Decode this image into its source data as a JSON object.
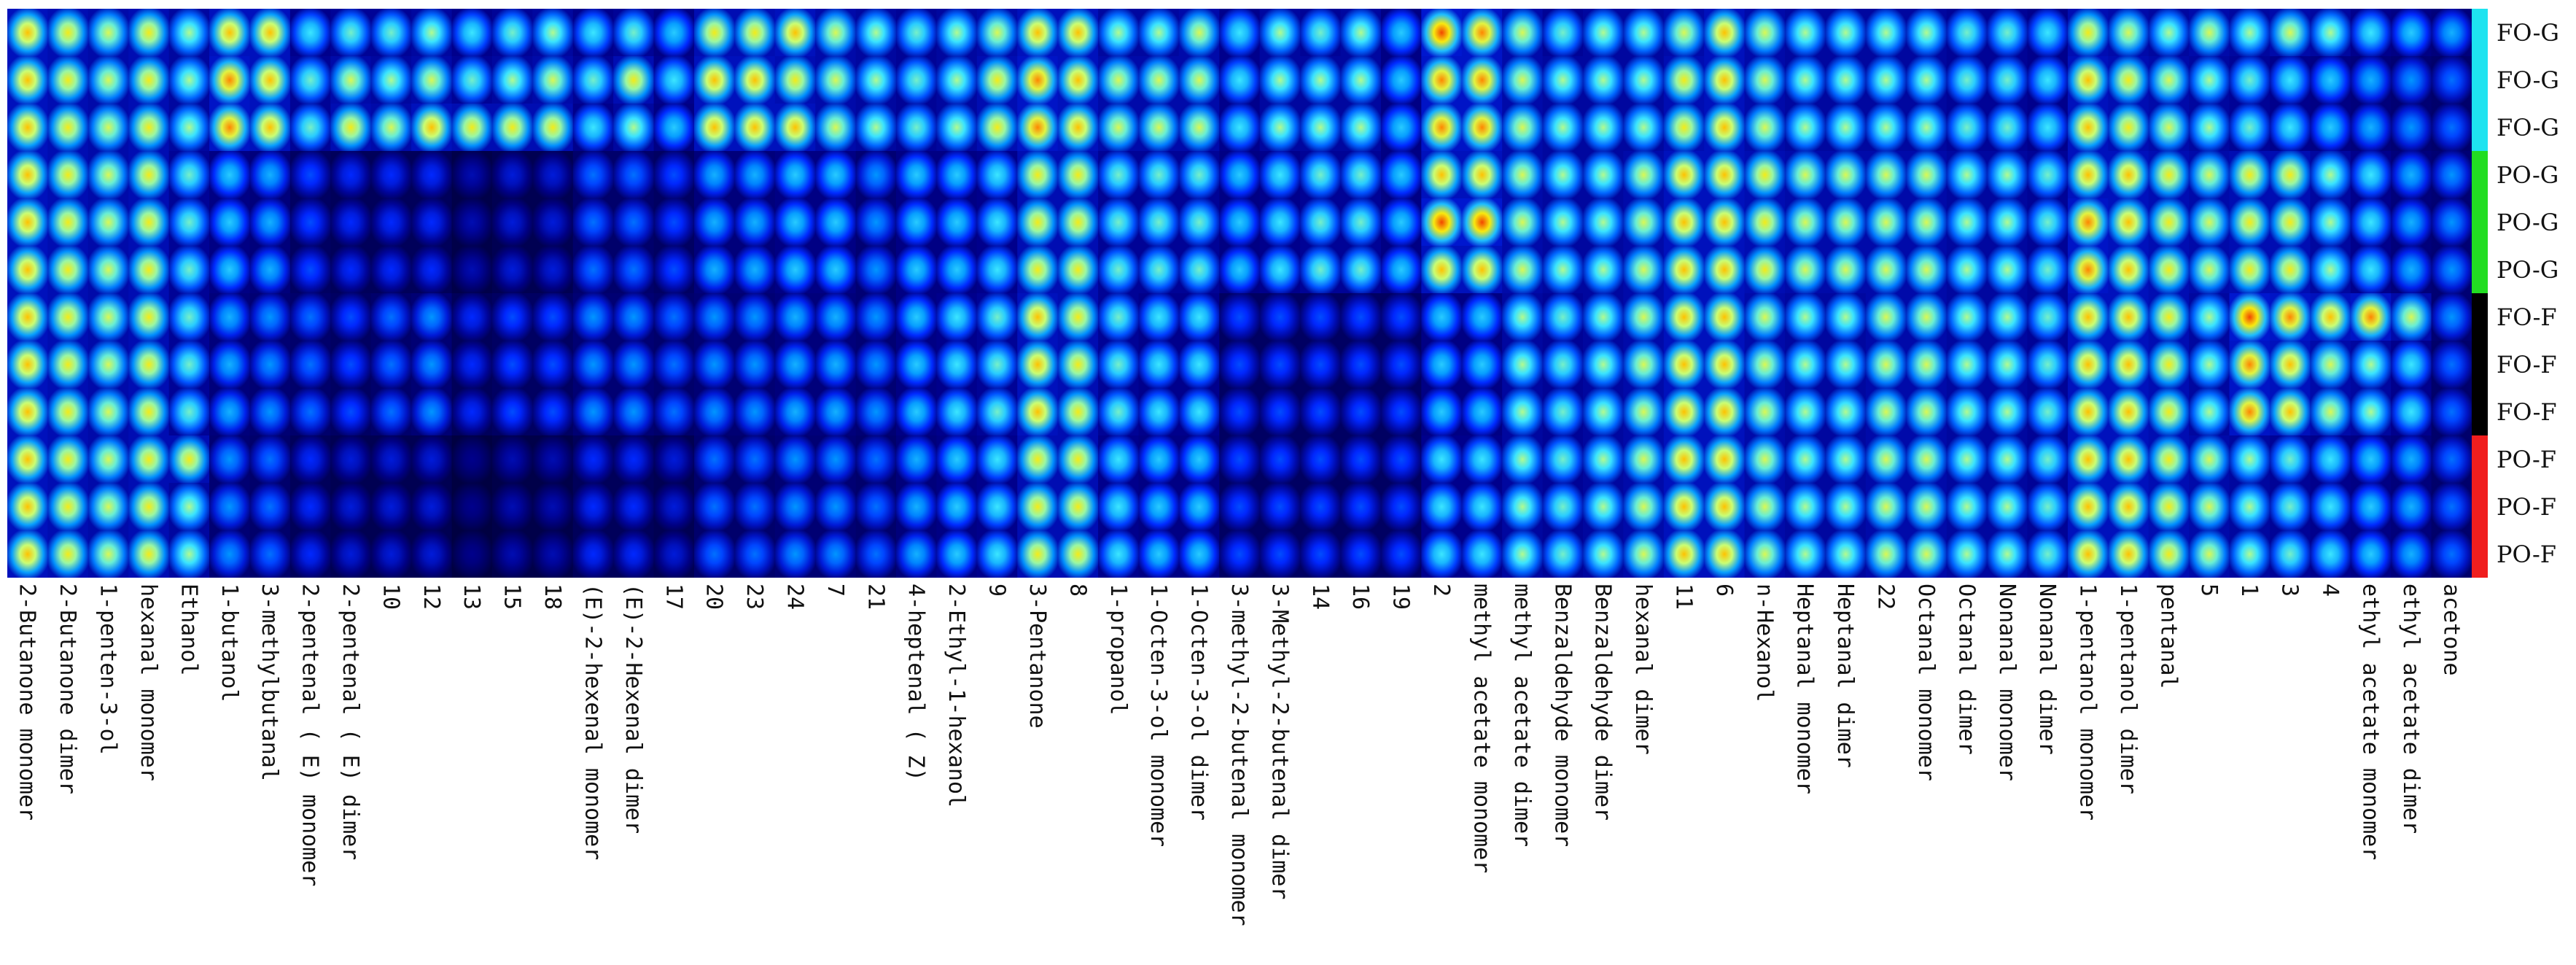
{
  "chart_data": {
    "type": "heatmap",
    "description_source": "GC-IMS gallery plot of volatile compounds",
    "rows": [
      "FO-G",
      "FO-G",
      "FO-G",
      "PO-G",
      "PO-G",
      "PO-G",
      "FO-F",
      "FO-F",
      "FO-F",
      "PO-F",
      "PO-F",
      "PO-F"
    ],
    "groups": [
      {
        "name": "FO-G",
        "color": "#1EE3F0",
        "rows": 3
      },
      {
        "name": "PO-G",
        "color": "#22DD22",
        "rows": 3
      },
      {
        "name": "FO-F",
        "color": "#000000",
        "rows": 3
      },
      {
        "name": "PO-F",
        "color": "#F01E1E",
        "rows": 3
      }
    ],
    "columns": [
      "2-Butanone monomer",
      "2-Butanone dimer",
      "1-penten-3-ol",
      "hexanal monomer",
      "Ethanol",
      "1-butanol",
      "3-methylbutanal",
      "2-pentenal (E) monomer",
      "2-pentenal (E) dimer",
      "10",
      "12",
      "13",
      "15",
      "18",
      "(E)-2-hexenal monomer",
      "(E)-2-Hexenal dimer",
      "17",
      "20",
      "23",
      "24",
      "7",
      "21",
      "4-heptenal (Z)",
      "2-Ethyl-1-hexanol",
      "9",
      "3-Pentanone",
      "8",
      "1-propanol",
      "1-Octen-3-ol monomer",
      "1-Octen-3-ol dimer",
      "3-methyl-2-butenal monomer",
      "3-Methyl-2-butenal dimer",
      "14",
      "16",
      "19",
      "2",
      "methyl acetate monomer",
      "methyl acetate dimer",
      "Benzaldehyde monomer",
      "Benzaldehyde dimer",
      "hexanal dimer",
      "11",
      "6",
      "n-Hexanol",
      "Heptanal monomer",
      "Heptanal dimer",
      "22",
      "Octanal monomer",
      "Octanal dimer",
      "Nonanal monomer",
      "Nonanal dimer",
      "1-pentanol monomer",
      "1-pentanol dimer",
      "pentanal",
      "5",
      "1",
      "3",
      "4",
      "ethyl acetate monomer",
      "ethyl acetate dimer",
      "acetone"
    ],
    "column_labels_display": [
      "2-Butanone monomer",
      "2-Butanone dimer",
      "1-penten-3-ol",
      "hexanal monomer",
      "Ethanol",
      "1-butanol",
      "3-methylbutanal",
      "2-pentenal ( E) monomer",
      "2-pentenal ( E) dimer",
      "10",
      "12",
      "13",
      "15",
      "18",
      "(E)-2-hexenal monomer",
      "(E)-2-Hexenal dimer",
      "17",
      "20",
      "23",
      "24",
      "7",
      "21",
      "4-heptenal ( Z)",
      "2-Ethyl-1-hexanol",
      "9",
      "3-Pentanone",
      "8",
      "1-propanol",
      "1-Octen-3-ol monomer",
      "1-Octen-3-ol dimer",
      "3-methyl-2-butenal monomer",
      "3-Methyl-2-butenal dimer",
      "14",
      "16",
      "19",
      "2",
      "methyl acetate monomer",
      "methyl acetate dimer",
      "Benzaldehyde monomer",
      "Benzaldehyde dimer",
      "hexanal dimer",
      "11",
      "6",
      "n-Hexanol",
      "Heptanal monomer",
      "Heptanal dimer",
      "22",
      "Octanal monomer",
      "Octanal dimer",
      "Nonanal monomer",
      "Nonanal dimer",
      "1-pentanol monomer",
      "1-pentanol dimer",
      "pentanal",
      "5",
      "1",
      "3",
      "4",
      "ethyl acetate monomer",
      "ethyl acetate dimer",
      "acetone"
    ],
    "values_note": "Per-cell intensity (0-1 scale, approx.) indexed [row][column].",
    "values": [
      [
        0.85,
        0.8,
        0.75,
        0.8,
        0.7,
        0.85,
        0.85,
        0.6,
        0.65,
        0.65,
        0.7,
        0.6,
        0.65,
        0.7,
        0.6,
        0.65,
        0.55,
        0.8,
        0.8,
        0.85,
        0.75,
        0.7,
        0.65,
        0.7,
        0.75,
        0.85,
        0.85,
        0.7,
        0.7,
        0.75,
        0.6,
        0.7,
        0.65,
        0.7,
        0.55,
        0.95,
        0.9,
        0.75,
        0.65,
        0.7,
        0.7,
        0.75,
        0.85,
        0.75,
        0.7,
        0.7,
        0.7,
        0.7,
        0.65,
        0.65,
        0.6,
        0.8,
        0.75,
        0.7,
        0.75,
        0.7,
        0.75,
        0.7,
        0.6,
        0.55,
        0.5
      ],
      [
        0.85,
        0.8,
        0.75,
        0.8,
        0.7,
        0.9,
        0.85,
        0.65,
        0.75,
        0.7,
        0.75,
        0.65,
        0.7,
        0.75,
        0.65,
        0.8,
        0.6,
        0.85,
        0.85,
        0.8,
        0.75,
        0.7,
        0.65,
        0.7,
        0.8,
        0.9,
        0.85,
        0.75,
        0.75,
        0.75,
        0.6,
        0.7,
        0.7,
        0.7,
        0.55,
        0.9,
        0.9,
        0.75,
        0.7,
        0.7,
        0.7,
        0.8,
        0.85,
        0.75,
        0.7,
        0.7,
        0.7,
        0.7,
        0.65,
        0.65,
        0.6,
        0.85,
        0.8,
        0.75,
        0.7,
        0.65,
        0.6,
        0.55,
        0.5,
        0.45,
        0.4
      ],
      [
        0.85,
        0.8,
        0.75,
        0.8,
        0.7,
        0.9,
        0.85,
        0.65,
        0.8,
        0.75,
        0.85,
        0.8,
        0.8,
        0.8,
        0.6,
        0.7,
        0.55,
        0.85,
        0.85,
        0.85,
        0.75,
        0.7,
        0.65,
        0.7,
        0.8,
        0.9,
        0.85,
        0.75,
        0.75,
        0.75,
        0.6,
        0.7,
        0.7,
        0.7,
        0.55,
        0.9,
        0.9,
        0.75,
        0.7,
        0.7,
        0.7,
        0.8,
        0.85,
        0.75,
        0.7,
        0.7,
        0.7,
        0.7,
        0.65,
        0.65,
        0.6,
        0.85,
        0.8,
        0.75,
        0.7,
        0.65,
        0.6,
        0.55,
        0.5,
        0.45,
        0.4
      ],
      [
        0.85,
        0.8,
        0.75,
        0.8,
        0.65,
        0.55,
        0.5,
        0.35,
        0.3,
        0.3,
        0.3,
        0.2,
        0.25,
        0.25,
        0.4,
        0.4,
        0.35,
        0.5,
        0.5,
        0.55,
        0.55,
        0.45,
        0.55,
        0.55,
        0.6,
        0.8,
        0.8,
        0.65,
        0.65,
        0.65,
        0.55,
        0.6,
        0.65,
        0.65,
        0.55,
        0.85,
        0.85,
        0.75,
        0.7,
        0.7,
        0.75,
        0.85,
        0.85,
        0.8,
        0.75,
        0.75,
        0.75,
        0.75,
        0.7,
        0.7,
        0.65,
        0.85,
        0.85,
        0.8,
        0.75,
        0.8,
        0.8,
        0.7,
        0.6,
        0.5,
        0.45
      ],
      [
        0.85,
        0.8,
        0.75,
        0.8,
        0.65,
        0.55,
        0.5,
        0.35,
        0.3,
        0.3,
        0.3,
        0.2,
        0.25,
        0.25,
        0.4,
        0.4,
        0.35,
        0.5,
        0.5,
        0.55,
        0.55,
        0.45,
        0.55,
        0.55,
        0.6,
        0.8,
        0.8,
        0.65,
        0.65,
        0.65,
        0.55,
        0.6,
        0.65,
        0.65,
        0.55,
        0.95,
        0.95,
        0.75,
        0.7,
        0.7,
        0.75,
        0.85,
        0.85,
        0.8,
        0.75,
        0.75,
        0.75,
        0.75,
        0.7,
        0.7,
        0.65,
        0.9,
        0.85,
        0.8,
        0.75,
        0.8,
        0.8,
        0.7,
        0.6,
        0.5,
        0.45
      ],
      [
        0.85,
        0.8,
        0.75,
        0.8,
        0.65,
        0.55,
        0.5,
        0.35,
        0.3,
        0.3,
        0.3,
        0.2,
        0.25,
        0.25,
        0.4,
        0.4,
        0.35,
        0.5,
        0.5,
        0.55,
        0.55,
        0.45,
        0.55,
        0.55,
        0.6,
        0.8,
        0.8,
        0.65,
        0.65,
        0.65,
        0.55,
        0.6,
        0.65,
        0.65,
        0.55,
        0.85,
        0.85,
        0.75,
        0.7,
        0.7,
        0.75,
        0.85,
        0.85,
        0.8,
        0.75,
        0.75,
        0.75,
        0.75,
        0.7,
        0.7,
        0.65,
        0.9,
        0.85,
        0.8,
        0.75,
        0.8,
        0.8,
        0.7,
        0.6,
        0.5,
        0.45
      ],
      [
        0.85,
        0.8,
        0.75,
        0.8,
        0.65,
        0.5,
        0.45,
        0.4,
        0.35,
        0.4,
        0.45,
        0.3,
        0.35,
        0.35,
        0.45,
        0.45,
        0.4,
        0.45,
        0.45,
        0.5,
        0.5,
        0.45,
        0.55,
        0.6,
        0.65,
        0.85,
        0.8,
        0.65,
        0.6,
        0.6,
        0.35,
        0.35,
        0.35,
        0.35,
        0.35,
        0.55,
        0.55,
        0.7,
        0.65,
        0.7,
        0.75,
        0.85,
        0.85,
        0.75,
        0.7,
        0.7,
        0.75,
        0.75,
        0.7,
        0.7,
        0.65,
        0.85,
        0.85,
        0.8,
        0.7,
        0.95,
        0.9,
        0.85,
        0.9,
        0.75,
        0.45
      ],
      [
        0.85,
        0.8,
        0.75,
        0.8,
        0.65,
        0.5,
        0.45,
        0.4,
        0.35,
        0.4,
        0.45,
        0.3,
        0.35,
        0.35,
        0.45,
        0.45,
        0.4,
        0.45,
        0.45,
        0.5,
        0.5,
        0.45,
        0.55,
        0.6,
        0.65,
        0.85,
        0.8,
        0.65,
        0.6,
        0.6,
        0.35,
        0.35,
        0.35,
        0.35,
        0.35,
        0.55,
        0.55,
        0.7,
        0.65,
        0.7,
        0.75,
        0.85,
        0.85,
        0.75,
        0.7,
        0.7,
        0.75,
        0.75,
        0.7,
        0.7,
        0.65,
        0.85,
        0.85,
        0.8,
        0.7,
        0.9,
        0.85,
        0.75,
        0.7,
        0.6,
        0.4
      ],
      [
        0.85,
        0.8,
        0.75,
        0.8,
        0.65,
        0.5,
        0.45,
        0.4,
        0.35,
        0.4,
        0.45,
        0.3,
        0.35,
        0.35,
        0.45,
        0.45,
        0.4,
        0.45,
        0.45,
        0.5,
        0.5,
        0.45,
        0.55,
        0.6,
        0.65,
        0.85,
        0.8,
        0.65,
        0.6,
        0.6,
        0.35,
        0.35,
        0.35,
        0.35,
        0.35,
        0.55,
        0.55,
        0.7,
        0.65,
        0.7,
        0.75,
        0.85,
        0.85,
        0.75,
        0.7,
        0.7,
        0.75,
        0.75,
        0.7,
        0.7,
        0.65,
        0.85,
        0.85,
        0.8,
        0.7,
        0.9,
        0.85,
        0.75,
        0.7,
        0.6,
        0.4
      ],
      [
        0.85,
        0.8,
        0.75,
        0.8,
        0.8,
        0.45,
        0.4,
        0.3,
        0.25,
        0.25,
        0.25,
        0.15,
        0.2,
        0.2,
        0.3,
        0.3,
        0.25,
        0.4,
        0.4,
        0.45,
        0.45,
        0.4,
        0.5,
        0.55,
        0.6,
        0.8,
        0.8,
        0.6,
        0.55,
        0.55,
        0.35,
        0.35,
        0.35,
        0.35,
        0.35,
        0.6,
        0.6,
        0.7,
        0.65,
        0.7,
        0.75,
        0.85,
        0.85,
        0.75,
        0.7,
        0.7,
        0.75,
        0.75,
        0.7,
        0.7,
        0.65,
        0.85,
        0.85,
        0.8,
        0.75,
        0.7,
        0.65,
        0.6,
        0.55,
        0.5,
        0.4
      ],
      [
        0.85,
        0.8,
        0.75,
        0.8,
        0.7,
        0.45,
        0.4,
        0.3,
        0.25,
        0.25,
        0.25,
        0.15,
        0.2,
        0.2,
        0.3,
        0.3,
        0.25,
        0.4,
        0.4,
        0.45,
        0.45,
        0.4,
        0.5,
        0.55,
        0.6,
        0.8,
        0.8,
        0.6,
        0.55,
        0.55,
        0.35,
        0.35,
        0.35,
        0.35,
        0.35,
        0.6,
        0.6,
        0.7,
        0.65,
        0.7,
        0.75,
        0.85,
        0.85,
        0.75,
        0.7,
        0.7,
        0.75,
        0.75,
        0.7,
        0.7,
        0.65,
        0.85,
        0.85,
        0.8,
        0.75,
        0.7,
        0.65,
        0.6,
        0.55,
        0.5,
        0.4
      ],
      [
        0.85,
        0.8,
        0.75,
        0.8,
        0.7,
        0.45,
        0.4,
        0.3,
        0.25,
        0.25,
        0.25,
        0.15,
        0.2,
        0.2,
        0.3,
        0.3,
        0.25,
        0.4,
        0.4,
        0.45,
        0.45,
        0.4,
        0.5,
        0.55,
        0.6,
        0.8,
        0.8,
        0.6,
        0.55,
        0.55,
        0.35,
        0.35,
        0.35,
        0.35,
        0.35,
        0.6,
        0.6,
        0.7,
        0.65,
        0.7,
        0.75,
        0.85,
        0.85,
        0.75,
        0.7,
        0.7,
        0.75,
        0.75,
        0.7,
        0.7,
        0.65,
        0.85,
        0.85,
        0.8,
        0.75,
        0.7,
        0.65,
        0.6,
        0.55,
        0.5,
        0.4
      ]
    ]
  }
}
